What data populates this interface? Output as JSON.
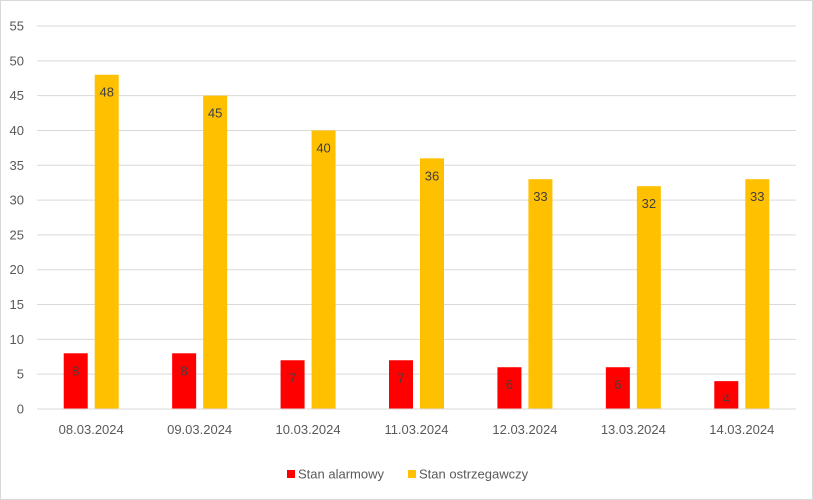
{
  "chart_data": {
    "type": "bar",
    "categories": [
      "08.03.2024",
      "09.03.2024",
      "10.03.2024",
      "11.03.2024",
      "12.03.2024",
      "13.03.2024",
      "14.03.2024"
    ],
    "series": [
      {
        "name": "Stan alarmowy",
        "values": [
          8,
          8,
          7,
          7,
          6,
          6,
          4
        ],
        "color": "#ff0000"
      },
      {
        "name": "Stan ostrzegawczy",
        "values": [
          48,
          45,
          40,
          36,
          33,
          32,
          33
        ],
        "color": "#ffc000"
      }
    ],
    "ylim": [
      0,
      55
    ],
    "yticks": [
      0,
      5,
      10,
      15,
      20,
      25,
      30,
      35,
      40,
      45,
      50,
      55
    ],
    "grid": true,
    "legend_position": "bottom",
    "data_labels": true,
    "title": "",
    "xlabel": "",
    "ylabel": ""
  }
}
